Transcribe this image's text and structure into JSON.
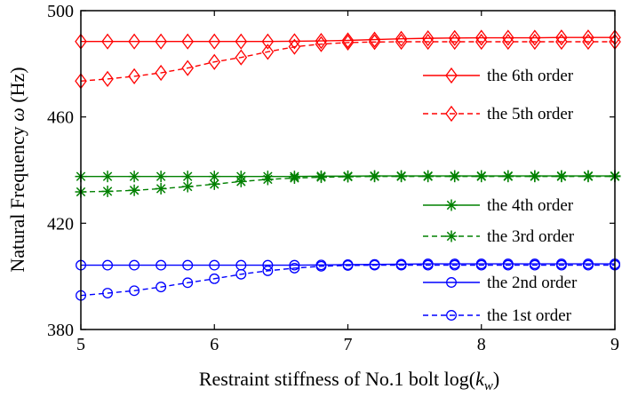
{
  "chart_data": {
    "type": "line",
    "xlabel_prefix": "Restraint stiffness of No.1 bolt log(",
    "xlabel_var": "k",
    "xlabel_sub": "w",
    "xlabel_suffix": ")",
    "ylabel_prefix": "Natural Frequency ",
    "ylabel_var": "ω",
    "ylabel_suffix": " (Hz)",
    "xlim": [
      5,
      9
    ],
    "ylim": [
      380,
      500
    ],
    "xticks": [
      5,
      6,
      7,
      8,
      9
    ],
    "yticks": [
      380,
      420,
      460,
      500
    ],
    "grid": false,
    "legend_placement": "right",
    "x": [
      5.0,
      5.2,
      5.4,
      5.6,
      5.8,
      6.0,
      6.2,
      6.4,
      6.6,
      6.8,
      7.0,
      7.2,
      7.4,
      7.6,
      7.8,
      8.0,
      8.2,
      8.4,
      8.6,
      8.8,
      9.0
    ],
    "series": [
      {
        "name": "the 6th order",
        "color": "#ff0000",
        "marker": "diamond",
        "dash": "solid",
        "values": [
          488.4,
          488.4,
          488.4,
          488.4,
          488.4,
          488.4,
          488.4,
          488.4,
          488.5,
          488.6,
          488.8,
          489.1,
          489.4,
          489.6,
          489.7,
          489.8,
          489.8,
          489.8,
          489.9,
          489.9,
          489.9
        ]
      },
      {
        "name": "the 5th order",
        "color": "#ff0000",
        "marker": "diamond",
        "dash": "dashed",
        "values": [
          473.5,
          474.3,
          475.3,
          476.6,
          478.4,
          480.7,
          482.4,
          484.5,
          486.4,
          487.4,
          488.0,
          488.2,
          488.3,
          488.3,
          488.3,
          488.3,
          488.3,
          488.3,
          488.3,
          488.3,
          488.3
        ]
      },
      {
        "name": "the 4th order",
        "color": "#008000",
        "marker": "star",
        "dash": "solid",
        "values": [
          437.6,
          437.6,
          437.6,
          437.6,
          437.6,
          437.6,
          437.6,
          437.6,
          437.6,
          437.7,
          437.7,
          437.8,
          437.8,
          437.8,
          437.8,
          437.8,
          437.8,
          437.8,
          437.8,
          437.8,
          437.8
        ]
      },
      {
        "name": "the 3rd order",
        "color": "#008000",
        "marker": "star",
        "dash": "dashed",
        "values": [
          431.8,
          432.0,
          432.4,
          433.0,
          433.8,
          434.7,
          435.7,
          436.5,
          437.0,
          437.3,
          437.5,
          437.6,
          437.6,
          437.6,
          437.6,
          437.6,
          437.6,
          437.6,
          437.6,
          437.6,
          437.6
        ]
      },
      {
        "name": "the 2nd order",
        "color": "#0000ff",
        "marker": "circle",
        "dash": "solid",
        "values": [
          404.2,
          404.2,
          404.2,
          404.2,
          404.2,
          404.2,
          404.2,
          404.2,
          404.2,
          404.3,
          404.4,
          404.5,
          404.6,
          404.7,
          404.7,
          404.7,
          404.7,
          404.7,
          404.7,
          404.7,
          404.7
        ]
      },
      {
        "name": "the 1st order",
        "color": "#0000ff",
        "marker": "circle",
        "dash": "dashed",
        "values": [
          392.8,
          393.7,
          394.6,
          396.0,
          397.6,
          399.1,
          400.8,
          402.1,
          403.1,
          403.8,
          404.1,
          404.2,
          404.2,
          404.2,
          404.2,
          404.2,
          404.2,
          404.2,
          404.2,
          404.2,
          404.2
        ]
      }
    ]
  }
}
